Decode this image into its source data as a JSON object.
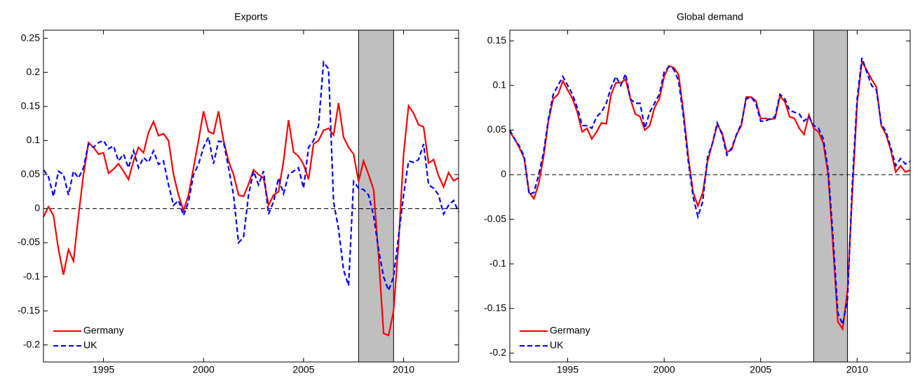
{
  "chart_data": [
    {
      "type": "line",
      "title": "Exports",
      "x": [
        1992,
        1992.25,
        1992.5,
        1992.75,
        1993,
        1993.25,
        1993.5,
        1993.75,
        1994,
        1994.25,
        1994.5,
        1994.75,
        1995,
        1995.25,
        1995.5,
        1995.75,
        1996,
        1996.25,
        1996.5,
        1996.75,
        1997,
        1997.25,
        1997.5,
        1997.75,
        1998,
        1998.25,
        1998.5,
        1998.75,
        1999,
        1999.25,
        1999.5,
        1999.75,
        2000,
        2000.25,
        2000.5,
        2000.75,
        2001,
        2001.25,
        2001.5,
        2001.75,
        2002,
        2002.25,
        2002.5,
        2002.75,
        2003,
        2003.25,
        2003.5,
        2003.75,
        2004,
        2004.25,
        2004.5,
        2004.75,
        2005,
        2005.25,
        2005.5,
        2005.75,
        2006,
        2006.25,
        2006.5,
        2006.75,
        2007,
        2007.25,
        2007.5,
        2007.75,
        2008,
        2008.25,
        2008.5,
        2008.75,
        2009,
        2009.25,
        2009.5,
        2009.75,
        2010,
        2010.25,
        2010.5,
        2010.75,
        2011,
        2011.25,
        2011.5,
        2011.75,
        2012,
        2012.25,
        2012.5,
        2012.75
      ],
      "series": [
        {
          "name": "Germany",
          "color": "#ff0000",
          "linestyle": "solid",
          "values": [
            -0.012,
            0.003,
            -0.01,
            -0.06,
            -0.097,
            -0.06,
            -0.077,
            -0.01,
            0.05,
            0.097,
            0.09,
            0.08,
            0.082,
            0.052,
            0.058,
            0.066,
            0.055,
            0.043,
            0.07,
            0.09,
            0.082,
            0.112,
            0.128,
            0.107,
            0.11,
            0.1,
            0.05,
            0.02,
            -0.003,
            0.02,
            0.06,
            0.1,
            0.143,
            0.113,
            0.11,
            0.143,
            0.1,
            0.07,
            0.05,
            0.02,
            0.018,
            0.036,
            0.057,
            0.05,
            0.045,
            0.005,
            0.02,
            0.025,
            0.07,
            0.13,
            0.083,
            0.077,
            0.065,
            0.043,
            0.095,
            0.1,
            0.115,
            0.118,
            0.108,
            0.155,
            0.105,
            0.09,
            0.08,
            0.04,
            0.07,
            0.05,
            0.028,
            -0.07,
            -0.183,
            -0.186,
            -0.15,
            -0.05,
            0.08,
            0.151,
            0.14,
            0.123,
            0.12,
            0.067,
            0.072,
            0.048,
            0.032,
            0.053,
            0.041,
            0.045
          ]
        },
        {
          "name": "UK",
          "color": "#0000ff",
          "linestyle": "dashed",
          "values": [
            0.057,
            0.047,
            0.018,
            0.055,
            0.05,
            0.02,
            0.055,
            0.045,
            0.06,
            0.095,
            0.09,
            0.097,
            0.1,
            0.088,
            0.092,
            0.07,
            0.08,
            0.06,
            0.085,
            0.06,
            0.075,
            0.068,
            0.085,
            0.065,
            0.07,
            0.035,
            0.005,
            0.012,
            -0.01,
            0.01,
            0.05,
            0.065,
            0.09,
            0.105,
            0.066,
            0.099,
            0.098,
            0.06,
            0.02,
            -0.05,
            -0.042,
            0.02,
            0.055,
            0.035,
            0.055,
            -0.008,
            0.01,
            0.045,
            0.022,
            0.05,
            0.055,
            0.06,
            0.03,
            0.09,
            0.1,
            0.122,
            0.215,
            0.205,
            0.01,
            -0.03,
            -0.09,
            -0.113,
            0.04,
            0.03,
            0.028,
            0.02,
            -0.01,
            -0.06,
            -0.1,
            -0.12,
            -0.1,
            -0.04,
            0.02,
            0.07,
            0.068,
            0.072,
            0.095,
            0.035,
            0.03,
            0.02,
            -0.008,
            0.005,
            0.012,
            -0.005
          ]
        }
      ],
      "xlim": [
        1992,
        2012.75
      ],
      "xticks": [
        1995,
        2000,
        2005,
        2010
      ],
      "ylim": [
        -0.225,
        0.262
      ],
      "yticks": [
        -0.2,
        -0.15,
        -0.1,
        -0.05,
        0,
        0.05,
        0.1,
        0.15,
        0.2,
        0.25
      ],
      "shaded_region": [
        2007.75,
        2009.5
      ],
      "shade_color": "#bfbfbf",
      "zero_line": true,
      "legend": "lower left"
    },
    {
      "type": "line",
      "title": "Global demand",
      "x": [
        1992,
        1992.25,
        1992.5,
        1992.75,
        1993,
        1993.25,
        1993.5,
        1993.75,
        1994,
        1994.25,
        1994.5,
        1994.75,
        1995,
        1995.25,
        1995.5,
        1995.75,
        1996,
        1996.25,
        1996.5,
        1996.75,
        1997,
        1997.25,
        1997.5,
        1997.75,
        1998,
        1998.25,
        1998.5,
        1998.75,
        1999,
        1999.25,
        1999.5,
        1999.75,
        2000,
        2000.25,
        2000.5,
        2000.75,
        2001,
        2001.25,
        2001.5,
        2001.75,
        2002,
        2002.25,
        2002.5,
        2002.75,
        2003,
        2003.25,
        2003.5,
        2003.75,
        2004,
        2004.25,
        2004.5,
        2004.75,
        2005,
        2005.25,
        2005.5,
        2005.75,
        2006,
        2006.25,
        2006.5,
        2006.75,
        2007,
        2007.25,
        2007.5,
        2007.75,
        2008,
        2008.25,
        2008.5,
        2008.75,
        2009,
        2009.25,
        2009.5,
        2009.75,
        2010,
        2010.25,
        2010.5,
        2010.75,
        2011,
        2011.25,
        2011.5,
        2011.75,
        2012,
        2012.25,
        2012.5,
        2012.75
      ],
      "series": [
        {
          "name": "Germany",
          "color": "#ff0000",
          "linestyle": "solid",
          "values": [
            0.048,
            0.04,
            0.03,
            0.018,
            -0.02,
            -0.027,
            -0.01,
            0.02,
            0.06,
            0.085,
            0.09,
            0.105,
            0.095,
            0.085,
            0.07,
            0.048,
            0.052,
            0.04,
            0.048,
            0.058,
            0.057,
            0.09,
            0.103,
            0.103,
            0.107,
            0.085,
            0.068,
            0.065,
            0.05,
            0.055,
            0.075,
            0.085,
            0.11,
            0.122,
            0.12,
            0.112,
            0.07,
            0.02,
            -0.02,
            -0.035,
            -0.02,
            0.015,
            0.035,
            0.056,
            0.047,
            0.025,
            0.028,
            0.045,
            0.055,
            0.087,
            0.087,
            0.083,
            0.063,
            0.063,
            0.062,
            0.063,
            0.088,
            0.082,
            0.065,
            0.063,
            0.052,
            0.045,
            0.067,
            0.052,
            0.048,
            0.035,
            0.0,
            -0.08,
            -0.165,
            -0.173,
            -0.13,
            -0.02,
            0.08,
            0.127,
            0.117,
            0.107,
            0.098,
            0.055,
            0.045,
            0.027,
            0.003,
            0.01,
            0.003,
            0.005
          ]
        },
        {
          "name": "UK",
          "color": "#0000ff",
          "linestyle": "dashed",
          "values": [
            0.05,
            0.04,
            0.032,
            0.02,
            -0.022,
            -0.02,
            0.0,
            0.025,
            0.062,
            0.09,
            0.1,
            0.11,
            0.1,
            0.09,
            0.075,
            0.055,
            0.055,
            0.052,
            0.065,
            0.07,
            0.08,
            0.098,
            0.11,
            0.1,
            0.113,
            0.085,
            0.08,
            0.08,
            0.052,
            0.07,
            0.08,
            0.09,
            0.115,
            0.121,
            0.118,
            0.105,
            0.065,
            0.015,
            -0.025,
            -0.047,
            -0.03,
            0.02,
            0.035,
            0.058,
            0.045,
            0.022,
            0.03,
            0.045,
            0.057,
            0.085,
            0.087,
            0.08,
            0.06,
            0.06,
            0.063,
            0.065,
            0.09,
            0.085,
            0.072,
            0.07,
            0.068,
            0.06,
            0.065,
            0.055,
            0.052,
            0.04,
            0.005,
            -0.07,
            -0.155,
            -0.168,
            -0.14,
            -0.01,
            0.085,
            0.131,
            0.115,
            0.1,
            0.095,
            0.057,
            0.048,
            0.03,
            0.01,
            0.018,
            0.012,
            0.015
          ]
        }
      ],
      "xlim": [
        1992,
        2012.75
      ],
      "xticks": [
        1995,
        2000,
        2005,
        2010
      ],
      "ylim": [
        -0.21,
        0.162
      ],
      "yticks": [
        -0.2,
        -0.15,
        -0.1,
        -0.05,
        0,
        0.05,
        0.1,
        0.15
      ],
      "shaded_region": [
        2007.75,
        2009.5
      ],
      "shade_color": "#bfbfbf",
      "zero_line": true,
      "legend": "lower left"
    }
  ]
}
